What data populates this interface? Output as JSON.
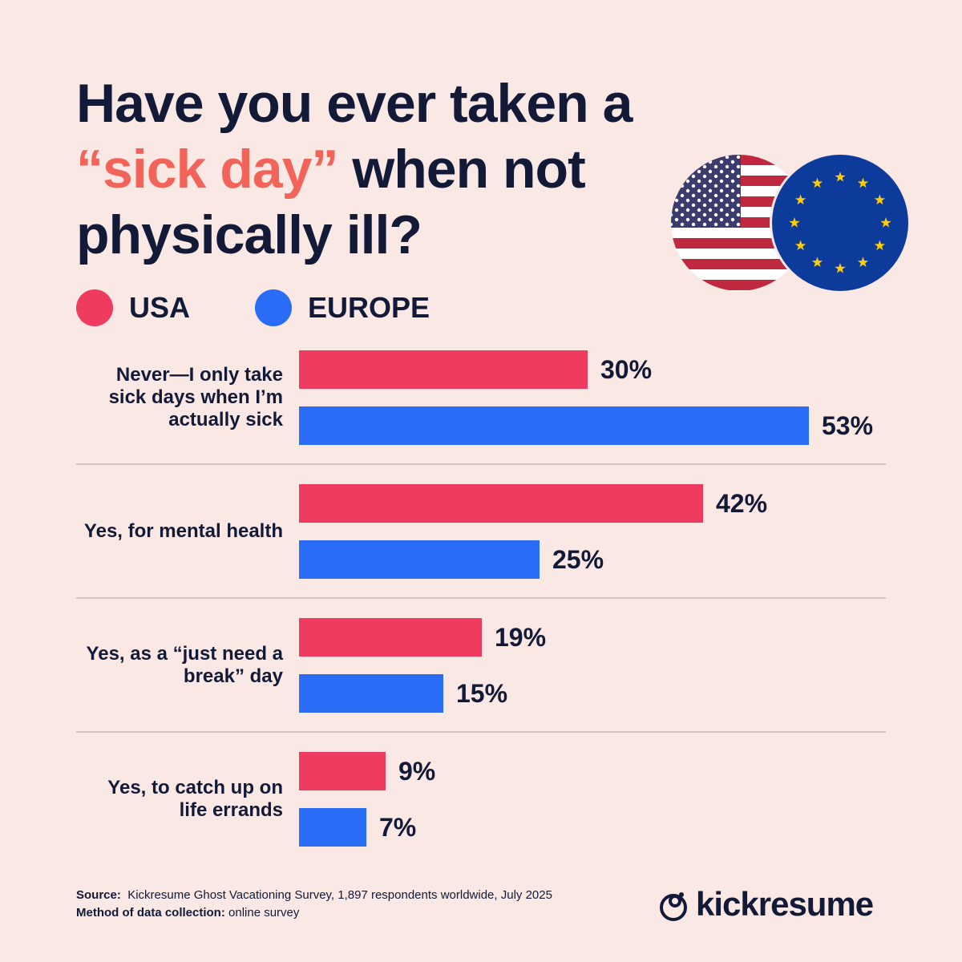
{
  "chart_data": {
    "type": "bar",
    "orientation": "horizontal",
    "title_parts": [
      "Have you ever taken a",
      "“sick day”",
      "when not",
      "physically ill?"
    ],
    "categories": [
      "Never—I only take sick days when I’m actually sick",
      "Yes, for mental health",
      "Yes, as a “just need a break” day",
      "Yes, to catch up on life errands"
    ],
    "series": [
      {
        "name": "USA",
        "color": "#ee3b5f",
        "values": [
          30,
          42,
          19,
          9
        ],
        "value_labels": [
          "30%",
          "42%",
          "19%",
          "9%"
        ]
      },
      {
        "name": "EUROPE",
        "color": "#2b6cf6",
        "values": [
          53,
          25,
          15,
          7
        ],
        "value_labels": [
          "53%",
          "25%",
          "15%",
          "7%"
        ]
      }
    ],
    "source_label": "Source:",
    "source": "Kickresume Ghost Vacationing Survey, 1,897 respondents worldwide, July 2025",
    "method_label": "Method of data collection:",
    "method": "online survey",
    "brand": "kickresume"
  }
}
